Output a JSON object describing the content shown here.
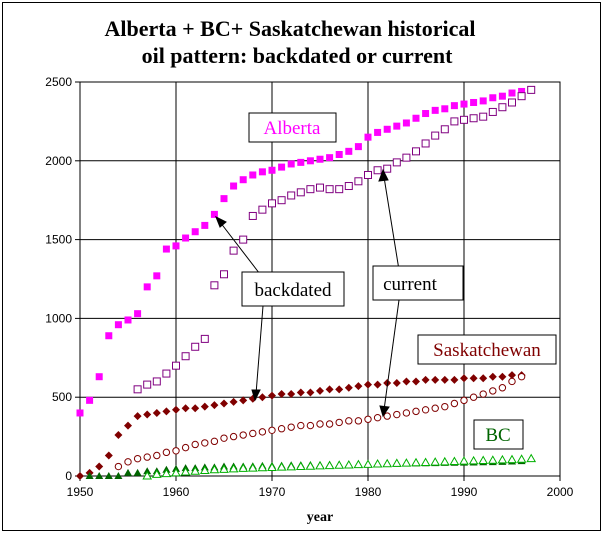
{
  "chart_data": {
    "type": "scatter",
    "title_line1": "Alberta + BC+ Saskatchewan historical",
    "title_line2": "oil pattern: backdated or current",
    "xlabel": "year",
    "ylabel": "",
    "xlim": [
      1950,
      2000
    ],
    "ylim": [
      0,
      2500
    ],
    "xticks": [
      "1950",
      "1960",
      "1970",
      "1980",
      "1990",
      "2000"
    ],
    "yticks": [
      "0",
      "500",
      "1000",
      "1500",
      "2000",
      "2500"
    ],
    "grid": true,
    "series": [
      {
        "name": "Alberta",
        "mode": "backdated",
        "marker": "square-filled",
        "color": "#ff00ff",
        "x": [
          1950,
          1951,
          1952,
          1953,
          1954,
          1955,
          1956,
          1957,
          1958,
          1959,
          1960,
          1961,
          1962,
          1963,
          1964,
          1965,
          1966,
          1967,
          1968,
          1969,
          1970,
          1971,
          1972,
          1973,
          1974,
          1975,
          1976,
          1977,
          1978,
          1979,
          1980,
          1981,
          1982,
          1983,
          1984,
          1985,
          1986,
          1987,
          1988,
          1989,
          1990,
          1991,
          1992,
          1993,
          1994,
          1995,
          1996,
          1997
        ],
        "y": [
          400,
          480,
          630,
          890,
          960,
          990,
          1030,
          1200,
          1270,
          1440,
          1460,
          1510,
          1550,
          1590,
          1660,
          1760,
          1840,
          1880,
          1910,
          1930,
          1940,
          1960,
          1980,
          1990,
          2000,
          2010,
          2020,
          2040,
          2060,
          2090,
          2150,
          2180,
          2200,
          2220,
          2240,
          2270,
          2300,
          2320,
          2330,
          2350,
          2360,
          2370,
          2380,
          2400,
          2410,
          2430,
          2440,
          2450
        ]
      },
      {
        "name": "Alberta",
        "mode": "current",
        "marker": "square-open",
        "color": "#800080",
        "x": [
          1956,
          1957,
          1958,
          1959,
          1960,
          1961,
          1962,
          1963,
          1964,
          1965,
          1966,
          1967,
          1968,
          1969,
          1970,
          1971,
          1972,
          1973,
          1974,
          1975,
          1976,
          1977,
          1978,
          1979,
          1980,
          1981,
          1982,
          1983,
          1984,
          1985,
          1986,
          1987,
          1988,
          1989,
          1990,
          1991,
          1992,
          1993,
          1994,
          1995,
          1996,
          1997
        ],
        "y": [
          550,
          580,
          600,
          650,
          700,
          760,
          820,
          870,
          1210,
          1280,
          1430,
          1500,
          1650,
          1690,
          1730,
          1750,
          1780,
          1800,
          1820,
          1830,
          1820,
          1820,
          1840,
          1870,
          1910,
          1940,
          1950,
          1990,
          2020,
          2060,
          2110,
          2160,
          2200,
          2250,
          2260,
          2270,
          2280,
          2310,
          2340,
          2370,
          2410,
          2450
        ]
      },
      {
        "name": "Saskatchewan",
        "mode": "backdated",
        "marker": "diamond-filled",
        "color": "#800000",
        "x": [
          1950,
          1951,
          1952,
          1953,
          1954,
          1955,
          1956,
          1957,
          1958,
          1959,
          1960,
          1961,
          1962,
          1963,
          1964,
          1965,
          1966,
          1967,
          1968,
          1969,
          1970,
          1971,
          1972,
          1973,
          1974,
          1975,
          1976,
          1977,
          1978,
          1979,
          1980,
          1981,
          1982,
          1983,
          1984,
          1985,
          1986,
          1987,
          1988,
          1989,
          1990,
          1991,
          1992,
          1993,
          1994,
          1995,
          1996
        ],
        "y": [
          0,
          20,
          60,
          130,
          260,
          320,
          380,
          390,
          400,
          410,
          420,
          430,
          430,
          440,
          450,
          460,
          470,
          480,
          490,
          500,
          510,
          520,
          520,
          530,
          530,
          540,
          550,
          550,
          560,
          570,
          580,
          580,
          590,
          590,
          600,
          600,
          610,
          610,
          610,
          610,
          620,
          620,
          620,
          630,
          630,
          640,
          640
        ]
      },
      {
        "name": "Saskatchewan",
        "mode": "current",
        "marker": "circle-open",
        "color": "#800000",
        "x": [
          1954,
          1955,
          1956,
          1957,
          1958,
          1959,
          1960,
          1961,
          1962,
          1963,
          1964,
          1965,
          1966,
          1967,
          1968,
          1969,
          1970,
          1971,
          1972,
          1973,
          1974,
          1975,
          1976,
          1977,
          1978,
          1979,
          1980,
          1981,
          1982,
          1983,
          1984,
          1985,
          1986,
          1987,
          1988,
          1989,
          1990,
          1991,
          1992,
          1993,
          1994,
          1995,
          1996
        ],
        "y": [
          60,
          90,
          110,
          120,
          130,
          150,
          160,
          180,
          200,
          210,
          220,
          240,
          250,
          260,
          270,
          280,
          290,
          300,
          310,
          320,
          320,
          330,
          330,
          340,
          350,
          350,
          360,
          370,
          380,
          390,
          400,
          410,
          420,
          430,
          440,
          460,
          480,
          500,
          520,
          540,
          560,
          600,
          630
        ]
      },
      {
        "name": "BC",
        "mode": "backdated",
        "marker": "triangle-filled",
        "color": "#006400",
        "x": [
          1951,
          1952,
          1953,
          1954,
          1955,
          1956,
          1957,
          1958,
          1959,
          1960,
          1961,
          1962,
          1963,
          1964,
          1965,
          1966,
          1967,
          1968,
          1969,
          1970,
          1971,
          1972,
          1973,
          1974,
          1975,
          1976,
          1977,
          1978,
          1979,
          1980,
          1981,
          1982,
          1983,
          1984,
          1985,
          1986,
          1987,
          1988,
          1989,
          1990,
          1991,
          1992,
          1993,
          1994,
          1995,
          1996
        ],
        "y": [
          0,
          0,
          0,
          0,
          20,
          20,
          30,
          30,
          40,
          45,
          50,
          50,
          55,
          55,
          60,
          60,
          60,
          62,
          64,
          65,
          66,
          68,
          69,
          70,
          70,
          71,
          72,
          73,
          74,
          75,
          76,
          77,
          78,
          79,
          80,
          81,
          82,
          83,
          84,
          85,
          86,
          87,
          88,
          90,
          92,
          94
        ]
      },
      {
        "name": "BC",
        "mode": "current",
        "marker": "triangle-open",
        "color": "#00b000",
        "x": [
          1957,
          1958,
          1959,
          1960,
          1961,
          1962,
          1963,
          1964,
          1965,
          1966,
          1967,
          1968,
          1969,
          1970,
          1971,
          1972,
          1973,
          1974,
          1975,
          1976,
          1977,
          1978,
          1979,
          1980,
          1981,
          1982,
          1983,
          1984,
          1985,
          1986,
          1987,
          1988,
          1989,
          1990,
          1991,
          1992,
          1993,
          1994,
          1995,
          1996,
          1997
        ],
        "y": [
          0,
          10,
          15,
          20,
          25,
          30,
          35,
          40,
          42,
          45,
          48,
          50,
          52,
          54,
          56,
          58,
          60,
          62,
          64,
          66,
          68,
          70,
          72,
          74,
          76,
          78,
          80,
          82,
          84,
          86,
          88,
          90,
          92,
          94,
          96,
          98,
          100,
          102,
          104,
          106,
          110
        ]
      }
    ],
    "annotations": {
      "alberta": "Alberta",
      "saskatchewan": "Saskatchewan",
      "bc": "BC",
      "backdated": "backdated",
      "current": "current"
    },
    "colors": {
      "alberta_label": "#ff00ff",
      "saskatchewan_label": "#800000",
      "bc_label": "#006400",
      "grid": "#000000"
    }
  }
}
